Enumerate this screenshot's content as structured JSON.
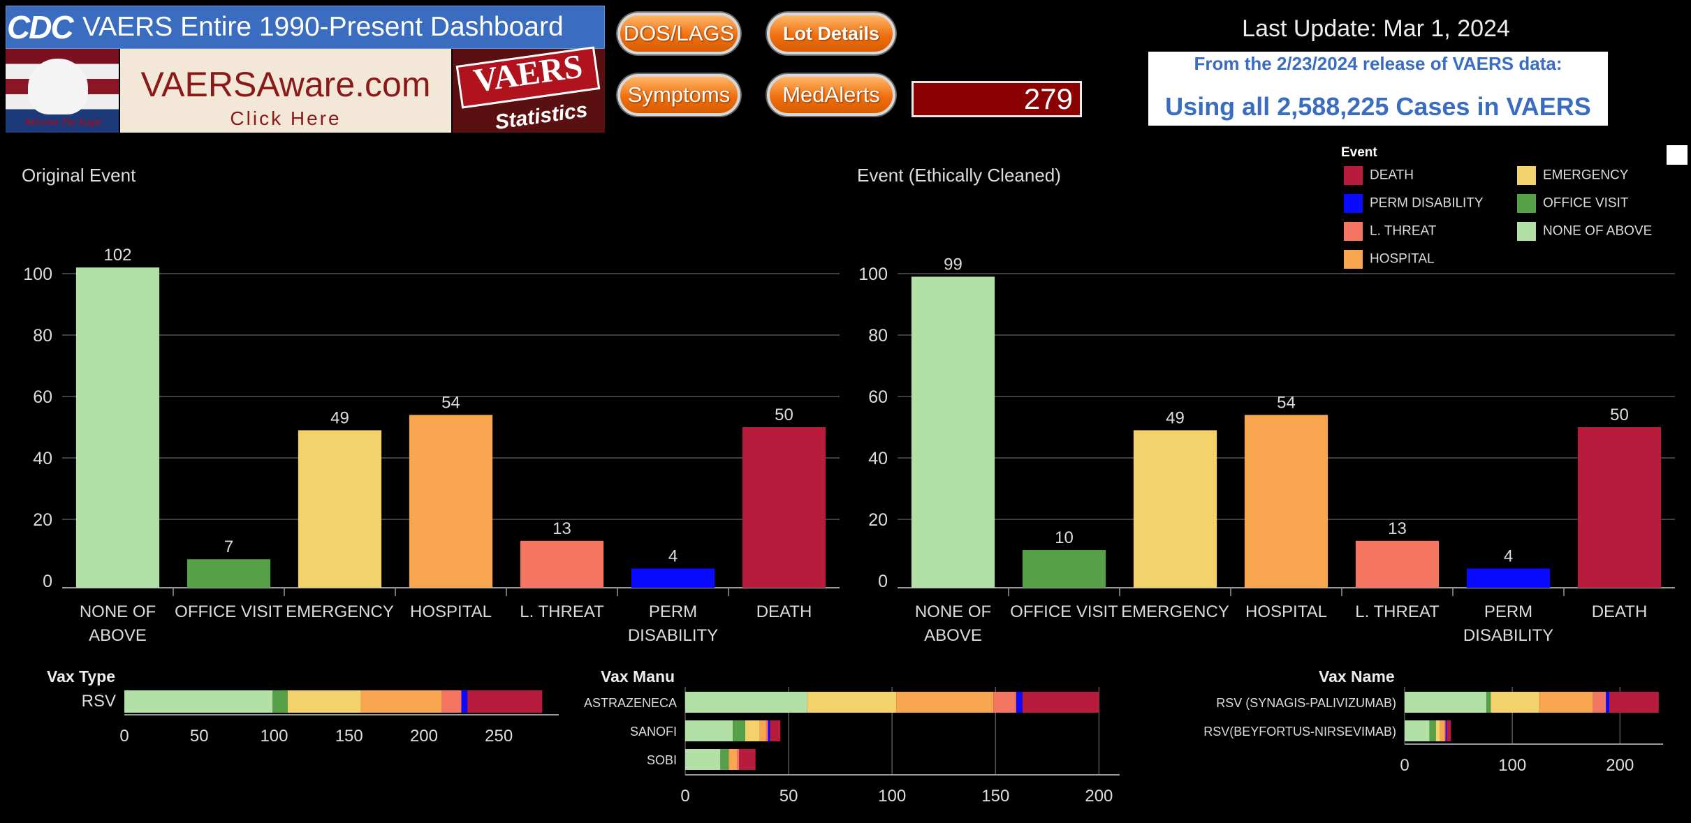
{
  "header": {
    "logo_text": "CDC",
    "title": "VAERS Entire 1990-Present Dashboard",
    "eagle_caption": "Welcome The Eagle",
    "vaers_aware": {
      "title": "VAERSAware.com",
      "cta": "Click Here"
    },
    "vaers_stats": {
      "word": "VAERS",
      "sub": "Statistics"
    },
    "buttons": {
      "dos": "DOS/LAGS",
      "lot": "Lot Details",
      "symptoms": "Symptoms",
      "medalerts": "MedAlerts"
    },
    "counter_value": "279",
    "last_update": "Last Update: Mar 1, 2024",
    "release_line1": "From the 2/23/2024 release of VAERS data:",
    "release_line2": "Using all 2,588,225 Cases in VAERS"
  },
  "colors": {
    "NONE OF ABOVE": "#b3e0a6",
    "OFFICE VISIT": "#56a048",
    "EMERGENCY": "#f3d16b",
    "HOSPITAL": "#f8a750",
    "L. THREAT": "#f47561",
    "PERM DISABILITY": "#0a0aff",
    "DEATH": "#b81c3c"
  },
  "legend": {
    "title": "Event",
    "items": [
      {
        "label": "DEATH",
        "key": "DEATH"
      },
      {
        "label": "EMERGENCY",
        "key": "EMERGENCY"
      },
      {
        "label": "PERM DISABILITY",
        "key": "PERM DISABILITY"
      },
      {
        "label": "OFFICE VISIT",
        "key": "OFFICE VISIT"
      },
      {
        "label": "L. THREAT",
        "key": "L. THREAT"
      },
      {
        "label": "NONE OF ABOVE",
        "key": "NONE OF ABOVE"
      },
      {
        "label": "HOSPITAL",
        "key": "HOSPITAL"
      }
    ]
  },
  "chart_data": [
    {
      "type": "bar",
      "title": "Original Event",
      "categories": [
        "NONE OF ABOVE",
        "OFFICE VISIT",
        "EMERGENCY",
        "HOSPITAL",
        "L. THREAT",
        "PERM DISABILITY",
        "DEATH"
      ],
      "category_labels": [
        [
          "NONE OF",
          "ABOVE"
        ],
        [
          "OFFICE VISIT"
        ],
        [
          "EMERGENCY"
        ],
        [
          "HOSPITAL"
        ],
        [
          "L. THREAT"
        ],
        [
          "PERM",
          "DISABILITY"
        ],
        [
          "DEATH"
        ]
      ],
      "values": [
        102,
        7,
        49,
        54,
        13,
        4,
        50
      ],
      "yticks": [
        0,
        20,
        40,
        60,
        80,
        100
      ],
      "ylim": [
        0,
        110
      ],
      "grid": true
    },
    {
      "type": "bar",
      "title": "Event (Ethically Cleaned)",
      "categories": [
        "NONE OF ABOVE",
        "OFFICE VISIT",
        "EMERGENCY",
        "HOSPITAL",
        "L. THREAT",
        "PERM DISABILITY",
        "DEATH"
      ],
      "category_labels": [
        [
          "NONE OF",
          "ABOVE"
        ],
        [
          "OFFICE VISIT"
        ],
        [
          "EMERGENCY"
        ],
        [
          "HOSPITAL"
        ],
        [
          "L. THREAT"
        ],
        [
          "PERM",
          "DISABILITY"
        ],
        [
          "DEATH"
        ]
      ],
      "values": [
        99,
        10,
        49,
        54,
        13,
        4,
        50
      ],
      "yticks": [
        0,
        20,
        40,
        60,
        80,
        100
      ],
      "ylim": [
        0,
        110
      ],
      "grid": true
    },
    {
      "type": "bar",
      "orientation": "horizontal-stacked",
      "title": "Vax Type",
      "categories": [
        "RSV"
      ],
      "series": [
        {
          "name": "NONE OF ABOVE",
          "values": [
            99
          ]
        },
        {
          "name": "OFFICE VISIT",
          "values": [
            10
          ]
        },
        {
          "name": "EMERGENCY",
          "values": [
            49
          ]
        },
        {
          "name": "HOSPITAL",
          "values": [
            54
          ]
        },
        {
          "name": "L. THREAT",
          "values": [
            13
          ]
        },
        {
          "name": "PERM DISABILITY",
          "values": [
            4
          ]
        },
        {
          "name": "DEATH",
          "values": [
            50
          ]
        }
      ],
      "xticks": [
        0,
        50,
        100,
        150,
        200,
        250
      ],
      "xlim": [
        0,
        290
      ]
    },
    {
      "type": "bar",
      "orientation": "horizontal-stacked",
      "title": "Vax Manu",
      "categories": [
        "ASTRAZENECA",
        "SANOFI",
        "SOBI"
      ],
      "series": [
        {
          "name": "NONE OF ABOVE",
          "values": [
            59,
            23,
            17
          ]
        },
        {
          "name": "OFFICE VISIT",
          "values": [
            0,
            6,
            4
          ]
        },
        {
          "name": "EMERGENCY",
          "values": [
            43,
            7,
            0
          ]
        },
        {
          "name": "HOSPITAL",
          "values": [
            47,
            3,
            4
          ]
        },
        {
          "name": "L. THREAT",
          "values": [
            11,
            1,
            1
          ]
        },
        {
          "name": "PERM DISABILITY",
          "values": [
            3,
            1,
            0
          ]
        },
        {
          "name": "DEATH",
          "values": [
            37,
            5,
            8
          ]
        }
      ],
      "xticks": [
        0,
        50,
        100,
        150,
        200
      ],
      "xlim": [
        0,
        210
      ],
      "grid": true
    },
    {
      "type": "bar",
      "orientation": "horizontal-stacked",
      "title": "Vax Name",
      "categories": [
        "RSV (SYNAGIS-PALIVIZUMAB)",
        "RSV(BEYFORTUS-NIRSEVIMAB)"
      ],
      "series": [
        {
          "name": "NONE OF ABOVE",
          "values": [
            76,
            23
          ]
        },
        {
          "name": "OFFICE VISIT",
          "values": [
            4,
            6
          ]
        },
        {
          "name": "EMERGENCY",
          "values": [
            45,
            4
          ]
        },
        {
          "name": "HOSPITAL",
          "values": [
            50,
            4
          ]
        },
        {
          "name": "L. THREAT",
          "values": [
            12,
            1
          ]
        },
        {
          "name": "PERM DISABILITY",
          "values": [
            3,
            1
          ]
        },
        {
          "name": "DEATH",
          "values": [
            46,
            4
          ]
        }
      ],
      "xticks": [
        0,
        100,
        200
      ],
      "xlim": [
        0,
        240
      ],
      "grid": true
    }
  ]
}
